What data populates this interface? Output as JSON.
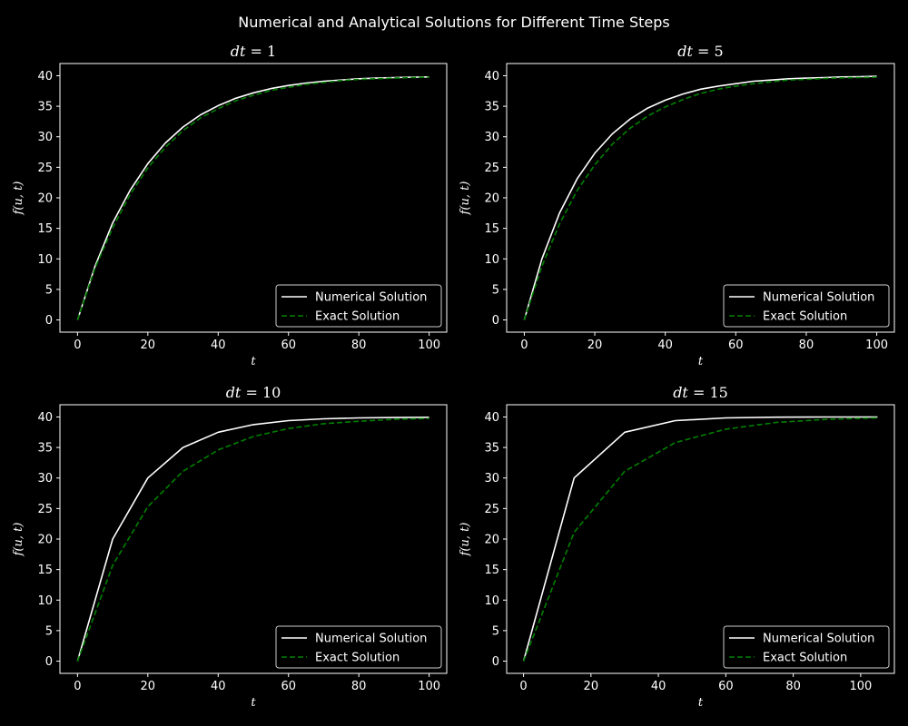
{
  "figure": {
    "suptitle": "Numerical and Analytical Solutions for Different Time Steps",
    "background": "#000000",
    "foreground": "#ffffff",
    "numerical_color": "#ffffff",
    "exact_color": "#008000"
  },
  "chart_data": [
    {
      "type": "line",
      "title": "dt = 1",
      "xlabel": "t",
      "ylabel": "f(u, t)",
      "xlim": [
        -5,
        105
      ],
      "ylim": [
        -2,
        42
      ],
      "xticks": [
        "0",
        "20",
        "40",
        "60",
        "80",
        "100"
      ],
      "yticks": [
        "0",
        "5",
        "10",
        "15",
        "20",
        "25",
        "30",
        "35",
        "40"
      ],
      "legend": "lower right",
      "grid": false,
      "series": [
        {
          "name": "Numerical Solution",
          "style": "solid",
          "x": [
            0,
            5,
            10,
            15,
            20,
            25,
            30,
            35,
            40,
            45,
            50,
            55,
            60,
            65,
            70,
            75,
            80,
            85,
            90,
            95,
            100
          ],
          "y": [
            0,
            8.8,
            15.9,
            21.3,
            25.6,
            29.0,
            31.6,
            33.6,
            35.1,
            36.3,
            37.2,
            37.9,
            38.4,
            38.8,
            39.1,
            39.3,
            39.5,
            39.6,
            39.7,
            39.75,
            39.8
          ]
        },
        {
          "name": "Exact Solution",
          "style": "dashed",
          "x": [
            0,
            5,
            10,
            15,
            20,
            25,
            30,
            35,
            40,
            45,
            50,
            55,
            60,
            65,
            70,
            75,
            80,
            85,
            90,
            95,
            100
          ],
          "y": [
            0,
            8.5,
            15.1,
            20.6,
            24.9,
            28.3,
            31.0,
            33.1,
            34.6,
            35.9,
            36.8,
            37.6,
            38.1,
            38.6,
            38.9,
            39.2,
            39.4,
            39.5,
            39.6,
            39.7,
            39.75
          ]
        }
      ]
    },
    {
      "type": "line",
      "title": "dt = 5",
      "xlabel": "t",
      "ylabel": "f(u, t)",
      "xlim": [
        -5,
        105
      ],
      "ylim": [
        -2,
        42
      ],
      "xticks": [
        "0",
        "20",
        "40",
        "60",
        "80",
        "100"
      ],
      "yticks": [
        "0",
        "5",
        "10",
        "15",
        "20",
        "25",
        "30",
        "35",
        "40"
      ],
      "legend": "lower right",
      "grid": false,
      "series": [
        {
          "name": "Numerical Solution",
          "style": "solid",
          "x": [
            0,
            5,
            10,
            15,
            20,
            25,
            30,
            35,
            40,
            45,
            50,
            55,
            60,
            65,
            70,
            75,
            80,
            85,
            90,
            95,
            100
          ],
          "y": [
            0,
            10.0,
            17.5,
            23.1,
            27.3,
            30.5,
            32.9,
            34.7,
            36.0,
            37.0,
            37.8,
            38.3,
            38.7,
            39.1,
            39.3,
            39.5,
            39.6,
            39.7,
            39.8,
            39.85,
            39.9
          ]
        },
        {
          "name": "Exact Solution",
          "style": "dashed",
          "x": [
            0,
            5,
            10,
            15,
            20,
            25,
            30,
            35,
            40,
            45,
            50,
            55,
            60,
            65,
            70,
            75,
            80,
            85,
            90,
            95,
            100
          ],
          "y": [
            0,
            8.8,
            15.7,
            21.2,
            25.4,
            28.8,
            31.4,
            33.4,
            34.9,
            36.1,
            37.1,
            37.8,
            38.3,
            38.7,
            39.0,
            39.3,
            39.4,
            39.55,
            39.65,
            39.7,
            39.75
          ]
        }
      ]
    },
    {
      "type": "line",
      "title": "dt = 10",
      "xlabel": "t",
      "ylabel": "f(u, t)",
      "xlim": [
        -5,
        105
      ],
      "ylim": [
        -2,
        42
      ],
      "xticks": [
        "0",
        "20",
        "40",
        "60",
        "80",
        "100"
      ],
      "yticks": [
        "0",
        "5",
        "10",
        "15",
        "20",
        "25",
        "30",
        "35",
        "40"
      ],
      "legend": "lower right",
      "grid": false,
      "series": [
        {
          "name": "Numerical Solution",
          "style": "solid",
          "x": [
            0,
            10,
            20,
            30,
            40,
            50,
            60,
            70,
            80,
            90,
            100
          ],
          "y": [
            0,
            20.0,
            30.0,
            35.0,
            37.5,
            38.75,
            39.4,
            39.7,
            39.85,
            39.9,
            39.95
          ]
        },
        {
          "name": "Exact Solution",
          "style": "dashed",
          "x": [
            0,
            10,
            20,
            30,
            40,
            50,
            60,
            70,
            80,
            90,
            100
          ],
          "y": [
            0,
            15.7,
            25.3,
            31.1,
            34.6,
            36.8,
            38.1,
            38.9,
            39.3,
            39.6,
            39.75
          ]
        }
      ]
    },
    {
      "type": "line",
      "title": "dt = 15",
      "xlabel": "t",
      "ylabel": "f(u, t)",
      "xlim": [
        -5,
        110
      ],
      "ylim": [
        -2,
        42
      ],
      "xticks": [
        "0",
        "20",
        "40",
        "60",
        "80",
        "100"
      ],
      "yticks": [
        "0",
        "5",
        "10",
        "15",
        "20",
        "25",
        "30",
        "35",
        "40"
      ],
      "legend": "lower right",
      "grid": false,
      "series": [
        {
          "name": "Numerical Solution",
          "style": "solid",
          "x": [
            0,
            15,
            30,
            45,
            60,
            75,
            90,
            105
          ],
          "y": [
            0,
            30.0,
            37.5,
            39.4,
            39.85,
            39.96,
            39.99,
            40.0
          ]
        },
        {
          "name": "Exact Solution",
          "style": "dashed",
          "x": [
            0,
            15,
            30,
            45,
            60,
            75,
            90,
            105
          ],
          "y": [
            0,
            21.1,
            31.1,
            35.8,
            38.0,
            39.1,
            39.6,
            39.85
          ]
        }
      ]
    }
  ]
}
